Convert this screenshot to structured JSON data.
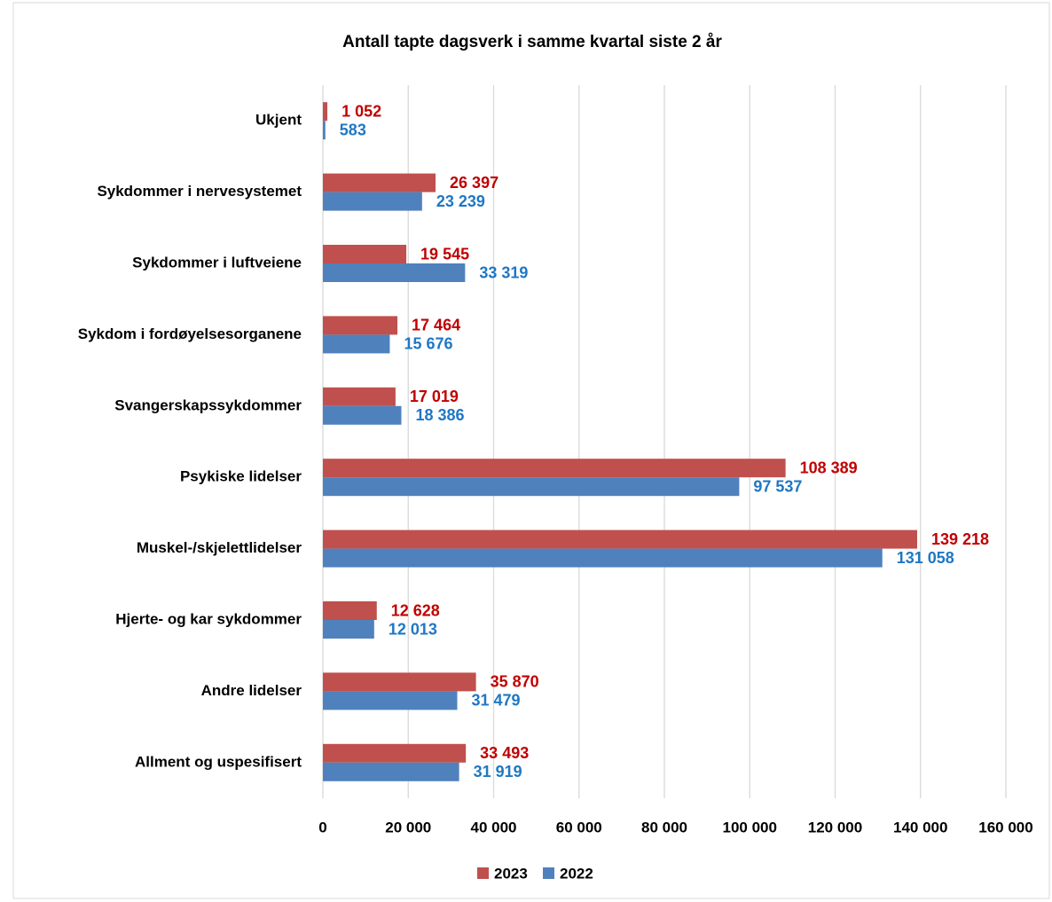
{
  "chart_data": {
    "type": "hbar",
    "title": "Antall tapte dagsverk i samme kvartal siste 2 år",
    "categories": [
      "Ukjent",
      "Sykdommer i nervesystemet",
      "Sykdommer i luftveiene",
      "Sykdom i fordøyelsesorganene",
      "Svangerskapssykdommer",
      "Psykiske lidelser",
      "Muskel-/skjelettlidelser",
      "Hjerte- og kar sykdommer",
      "Andre lidelser",
      "Allment og uspesifisert"
    ],
    "series": [
      {
        "name": "2023",
        "color": "#c0504d",
        "label_color": "#c00000",
        "values": [
          1052,
          26397,
          19545,
          17464,
          17019,
          108389,
          139218,
          12628,
          35870,
          33493
        ],
        "value_labels": [
          "1 052",
          "26 397",
          "19 545",
          "17 464",
          "17 019",
          "108 389",
          "139 218",
          "12 628",
          "35 870",
          "33 493"
        ]
      },
      {
        "name": "2022",
        "color": "#4f81bd",
        "label_color": "#1f77c4",
        "values": [
          583,
          23239,
          33319,
          15676,
          18386,
          97537,
          131058,
          12013,
          31479,
          31919
        ],
        "value_labels": [
          "583",
          "23 239",
          "33 319",
          "15 676",
          "18 386",
          "97 537",
          "131 058",
          "12 013",
          "31 479",
          "31 919"
        ]
      }
    ],
    "xlim": [
      0,
      160000
    ],
    "xticks": [
      0,
      {
        "value": 20000,
        "label": "20 000"
      },
      {
        "value": 40000,
        "label": "40 000"
      },
      {
        "value": 60000,
        "label": "60 000"
      },
      {
        "value": 80000,
        "label": "80 000"
      },
      {
        "value": 100000,
        "label": "100 000"
      },
      {
        "value": 120000,
        "label": "120 000"
      },
      {
        "value": 140000,
        "label": "140 000"
      },
      {
        "value": 160000,
        "label": "160 000"
      }
    ],
    "grid": true,
    "legend": "bottom"
  }
}
